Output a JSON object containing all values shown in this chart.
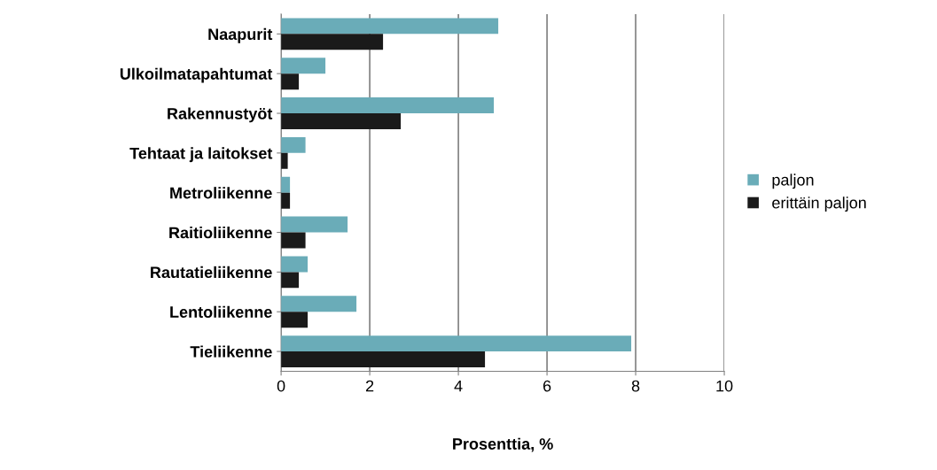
{
  "chart_data": {
    "type": "bar",
    "orientation": "horizontal",
    "xlabel": "Prosenttia, %",
    "categories": [
      "Naapurit",
      "Ulkoilmatapahtumat",
      "Rakennustyöt",
      "Tehtaat ja laitokset",
      "Metroliikenne",
      "Raitioliikenne",
      "Rautatieliikenne",
      "Lentoliikenne",
      "Tieliikenne"
    ],
    "series": [
      {
        "name": "paljon",
        "color": "#6aacb8",
        "values": [
          4.9,
          1.0,
          4.8,
          0.55,
          0.2,
          1.5,
          0.6,
          1.7,
          7.9
        ]
      },
      {
        "name": "erittäin paljon",
        "color": "#1a1a1a",
        "values": [
          2.3,
          0.4,
          2.7,
          0.15,
          0.2,
          0.55,
          0.4,
          0.6,
          4.6
        ]
      }
    ],
    "xlim": [
      0,
      10
    ],
    "xticks": [
      0,
      2,
      4,
      6,
      8,
      10
    ],
    "grid": "x",
    "legend": "right"
  }
}
